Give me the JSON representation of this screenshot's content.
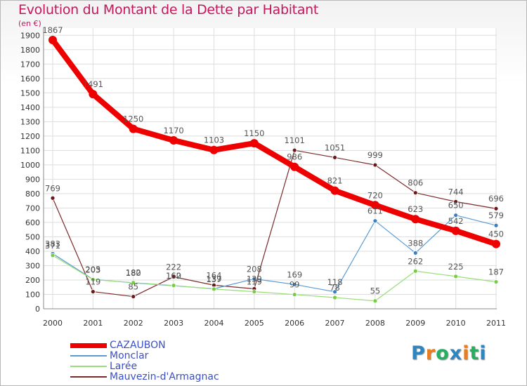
{
  "title": "Evolution du Montant de la Dette par Habitant",
  "unit_label": "(en €)",
  "logo": {
    "text": "Proxiti",
    "letters": [
      "P",
      "r",
      "o",
      "x",
      "i",
      "t",
      "i"
    ],
    "colors": [
      "#2e86c1",
      "#e67e22",
      "#27ae60",
      "#2e86c1",
      "#e67e22",
      "#27ae60",
      "#2e86c1"
    ]
  },
  "chart_data": {
    "type": "line",
    "title": "Evolution du Montant de la Dette par Habitant",
    "ylabel": "(en €)",
    "xlabel": "",
    "x": [
      "2000",
      "2001",
      "2002",
      "2003",
      "2004",
      "2005",
      "2006",
      "2007",
      "2008",
      "2009",
      "2010",
      "2011"
    ],
    "ylim": [
      0,
      1950
    ],
    "yticks": [
      0,
      100,
      200,
      300,
      400,
      500,
      600,
      700,
      800,
      900,
      1000,
      1100,
      1200,
      1300,
      1400,
      1500,
      1600,
      1700,
      1800,
      1900
    ],
    "grid": true,
    "legend_position": "bottom-left",
    "series": [
      {
        "name": "CAZAUBON",
        "color": "#ee0000",
        "values": [
          1867,
          1491,
          1250,
          1170,
          1103,
          1150,
          986,
          821,
          720,
          623,
          542,
          450
        ]
      },
      {
        "name": "Monclar",
        "color": "#5b9bd5",
        "values": [
          383,
          205,
          180,
          160,
          139,
          208,
          169,
          118,
          611,
          388,
          650,
          579
        ]
      },
      {
        "name": "Larée",
        "color": "#99dd77",
        "values": [
          371,
          203,
          182,
          162,
          137,
          119,
          99,
          78,
          55,
          262,
          225,
          187
        ]
      },
      {
        "name": "Mauvezin-d'Armagnac",
        "color": "#7b2a2a",
        "values": [
          769,
          119,
          85,
          222,
          164,
          139,
          1101,
          1051,
          999,
          806,
          744,
          696
        ]
      }
    ]
  }
}
